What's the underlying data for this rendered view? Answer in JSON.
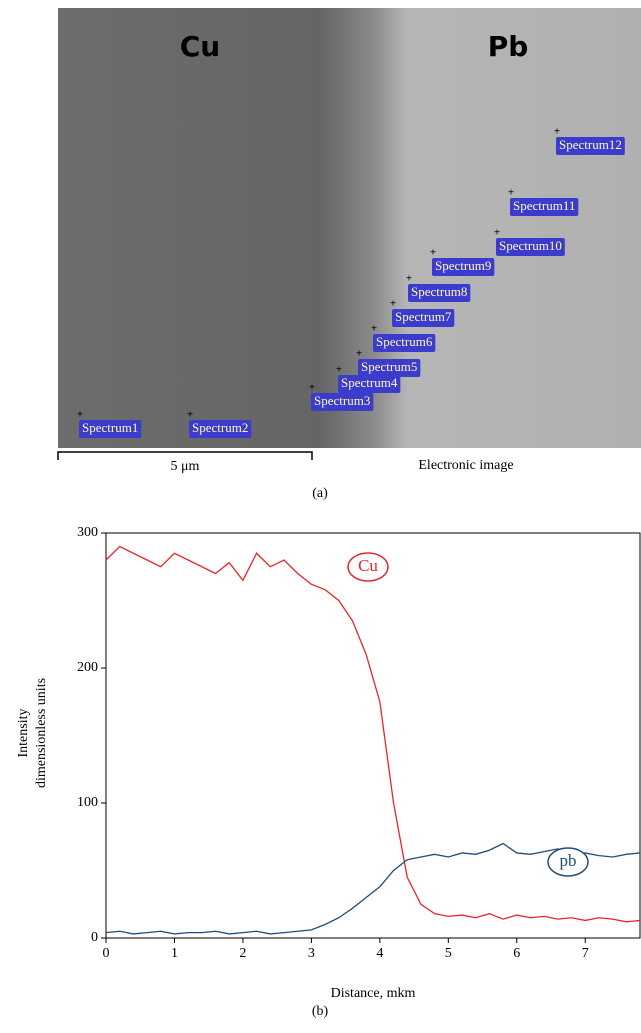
{
  "figure_a": {
    "labels": [
      "Cu",
      "Pb"
    ],
    "spectra": [
      "Spectrum1",
      "Spectrum2",
      "Spectrum3",
      "Spectrum4",
      "Spectrum5",
      "Spectrum6",
      "Spectrum7",
      "Spectrum8",
      "Spectrum9",
      "Spectrum10",
      "Spectrum11",
      "Spectrum12"
    ],
    "scale_bar": "5 μm",
    "image_caption": "Electronic image",
    "panel": "(a)"
  },
  "chart_data": {
    "type": "line",
    "xlabel": "Distance, mkm",
    "ylabel": [
      "Intensity",
      "dimensionless units"
    ],
    "panel": "(b)",
    "x": [
      0,
      0.2,
      0.4,
      0.6,
      0.8,
      1.0,
      1.2,
      1.4,
      1.6,
      1.8,
      2.0,
      2.2,
      2.4,
      2.6,
      2.8,
      3.0,
      3.2,
      3.4,
      3.6,
      3.8,
      4.0,
      4.2,
      4.4,
      4.6,
      4.8,
      5.0,
      5.2,
      5.4,
      5.6,
      5.8,
      6.0,
      6.2,
      6.4,
      6.6,
      6.8,
      7.0,
      7.2,
      7.4,
      7.6,
      7.8
    ],
    "series": [
      {
        "name": "Cu",
        "color": "#e8262a",
        "values": [
          280,
          290,
          285,
          280,
          275,
          285,
          280,
          275,
          270,
          278,
          265,
          285,
          275,
          280,
          270,
          262,
          258,
          250,
          235,
          210,
          175,
          100,
          45,
          25,
          18,
          16,
          17,
          15,
          18,
          14,
          17,
          15,
          16,
          14,
          15,
          13,
          15,
          14,
          12,
          13
        ]
      },
      {
        "name": "pb",
        "color": "#1f4e79",
        "values": [
          4,
          5,
          3,
          4,
          5,
          3,
          4,
          4,
          5,
          3,
          4,
          5,
          3,
          4,
          5,
          6,
          10,
          15,
          22,
          30,
          38,
          50,
          58,
          60,
          62,
          60,
          63,
          62,
          65,
          70,
          63,
          62,
          64,
          66,
          62,
          63,
          61,
          60,
          62,
          63
        ]
      }
    ],
    "xlim": [
      0,
      7.8
    ],
    "xticks": [
      0,
      1,
      2,
      3,
      4,
      5,
      6,
      7
    ],
    "ylim": [
      0,
      300
    ],
    "yticks": [
      0,
      100,
      200,
      300
    ]
  }
}
